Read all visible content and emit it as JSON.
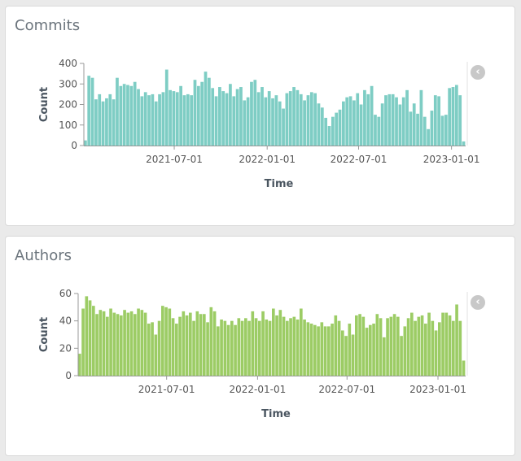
{
  "cards": [
    {
      "title": "Commits",
      "color": "#7ecdc4",
      "icon": "chevron-left-icon",
      "icon_glyph": "‹"
    },
    {
      "title": "Authors",
      "color": "#9ccc65",
      "icon": "chevron-left-icon",
      "icon_glyph": "‹"
    }
  ],
  "chart_data": [
    {
      "type": "bar",
      "title": "Commits",
      "xlabel": "Time",
      "ylabel": "Count",
      "ylim": [
        0,
        400
      ],
      "yticks": [
        0,
        100,
        200,
        300,
        400
      ],
      "xticks": [
        "2021-07-01",
        "2022-01-01",
        "2022-07-01",
        "2023-01-01"
      ],
      "x_start": "2021-01-03",
      "x_interval": "week",
      "values": [
        25,
        340,
        330,
        225,
        250,
        215,
        230,
        250,
        225,
        330,
        290,
        300,
        295,
        290,
        310,
        275,
        240,
        260,
        245,
        250,
        215,
        250,
        260,
        370,
        270,
        265,
        260,
        290,
        245,
        250,
        245,
        320,
        290,
        310,
        360,
        330,
        280,
        240,
        285,
        265,
        255,
        300,
        240,
        275,
        285,
        220,
        235,
        310,
        320,
        260,
        285,
        235,
        265,
        230,
        245,
        215,
        180,
        255,
        265,
        285,
        270,
        250,
        220,
        245,
        260,
        255,
        205,
        185,
        135,
        95,
        140,
        160,
        175,
        215,
        235,
        240,
        220,
        255,
        200,
        270,
        250,
        290,
        150,
        140,
        205,
        245,
        250,
        250,
        235,
        200,
        235,
        270,
        165,
        205,
        155,
        270,
        140,
        80,
        170,
        245,
        240,
        145,
        150,
        280,
        285,
        295,
        245,
        20
      ]
    },
    {
      "type": "bar",
      "title": "Authors",
      "xlabel": "Time",
      "ylabel": "Count",
      "ylim": [
        0,
        60
      ],
      "yticks": [
        0,
        20,
        40,
        60
      ],
      "xticks": [
        "2021-07-01",
        "2022-01-01",
        "2022-07-01",
        "2023-01-01"
      ],
      "x_start": "2021-01-03",
      "x_interval": "week",
      "values": [
        16,
        49,
        58,
        55,
        51,
        45,
        48,
        47,
        43,
        49,
        46,
        45,
        44,
        48,
        46,
        47,
        45,
        49,
        48,
        46,
        38,
        39,
        30,
        40,
        51,
        50,
        49,
        42,
        38,
        43,
        47,
        44,
        46,
        40,
        47,
        45,
        45,
        39,
        50,
        47,
        36,
        41,
        40,
        37,
        40,
        37,
        42,
        40,
        42,
        40,
        47,
        42,
        40,
        47,
        41,
        40,
        49,
        44,
        48,
        43,
        40,
        42,
        43,
        41,
        49,
        41,
        39,
        38,
        37,
        36,
        39,
        36,
        36,
        38,
        44,
        40,
        33,
        29,
        38,
        30,
        44,
        45,
        43,
        35,
        37,
        38,
        45,
        42,
        28,
        42,
        43,
        45,
        43,
        29,
        36,
        42,
        46,
        40,
        43,
        44,
        38,
        46,
        40,
        33,
        39,
        46,
        46,
        44,
        40,
        52,
        40,
        11
      ]
    }
  ]
}
